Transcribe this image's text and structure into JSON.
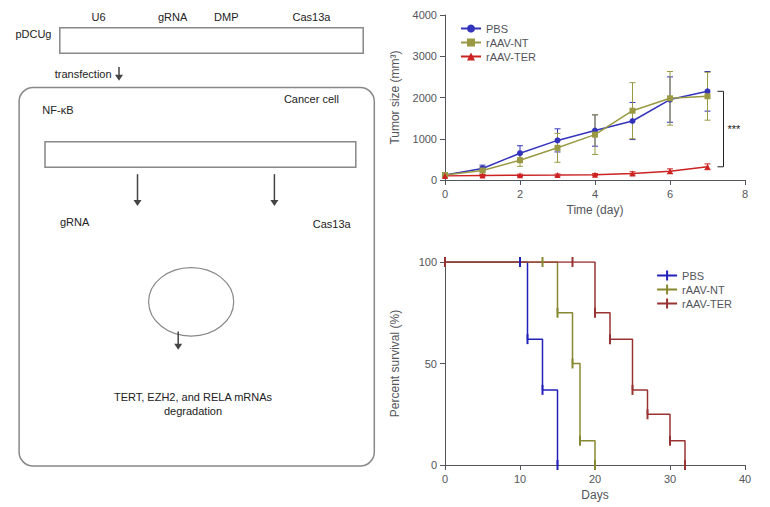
{
  "chart_data": [
    {
      "type": "diagram",
      "annotations": [
        "pDCUg",
        "U6",
        "gRNA",
        "DMP",
        "Cas13a",
        "transfection",
        "Cancer cell",
        "NF-κB",
        "gRNA",
        "Cas13a",
        "TERT, EZH2, and RELA mRNAs\ndegradation"
      ]
    },
    {
      "type": "line",
      "x": [
        0,
        1,
        2,
        3,
        4,
        5,
        6,
        7
      ],
      "series": [
        {
          "name": "PBS",
          "color": "#3333bb",
          "marker": "circle",
          "values": [
            120,
            280,
            650,
            960,
            1200,
            1430,
            1950,
            2150
          ],
          "errors": [
            20,
            80,
            180,
            280,
            380,
            450,
            550,
            480
          ]
        },
        {
          "name": "rAAV-NT",
          "color": "#999944",
          "marker": "square",
          "values": [
            120,
            230,
            480,
            780,
            1100,
            1680,
            1980,
            2030
          ],
          "errors": [
            20,
            90,
            150,
            350,
            480,
            680,
            650,
            580
          ]
        },
        {
          "name": "rAAV-TER",
          "color": "#cc2222",
          "marker": "triangle",
          "values": [
            100,
            110,
            115,
            120,
            130,
            160,
            215,
            320
          ],
          "errors": [
            15,
            20,
            25,
            25,
            25,
            40,
            55,
            70
          ]
        }
      ],
      "xlabel": "Time (day)",
      "ylabel": "Tumor size (mm³)",
      "xlim": [
        0,
        8
      ],
      "ylim": [
        0,
        4000
      ],
      "xticks": [
        0,
        2,
        4,
        6,
        8
      ],
      "yticks": [
        0,
        1000,
        2000,
        3000,
        4000
      ],
      "legend": "upper left",
      "grid": false,
      "annotations": [
        {
          "text": "***"
        }
      ]
    },
    {
      "type": "line",
      "line_style": "step",
      "marker": "vline",
      "series": [
        {
          "name": "PBS",
          "color": "#2222bb",
          "x": [
            0,
            10,
            11,
            13,
            15
          ],
          "values": [
            100,
            100,
            62,
            37,
            0
          ]
        },
        {
          "name": "rAAV-NT",
          "color": "#888833",
          "x": [
            0,
            13,
            15,
            17,
            18,
            20
          ],
          "values": [
            100,
            100,
            75,
            50,
            12,
            0
          ]
        },
        {
          "name": "rAAV-TER",
          "color": "#993333",
          "x": [
            0,
            17,
            20,
            22,
            25,
            27,
            30,
            32
          ],
          "values": [
            100,
            100,
            75,
            62,
            37,
            25,
            12,
            0
          ]
        }
      ],
      "xlabel": "Days",
      "ylabel": "Percent survival (%)",
      "xlim": [
        0,
        40
      ],
      "ylim": [
        0,
        100
      ],
      "xticks": [
        0,
        10,
        20,
        30,
        40
      ],
      "yticks": [
        0,
        50,
        100
      ],
      "legend": "upper right",
      "grid": false
    }
  ]
}
